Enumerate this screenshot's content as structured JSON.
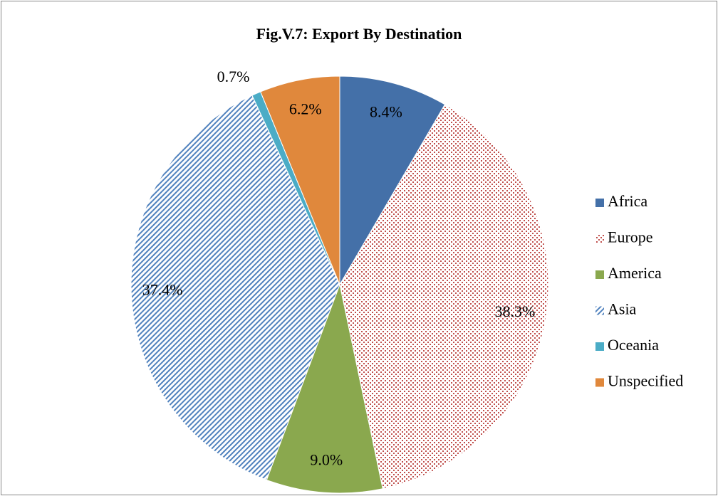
{
  "chart_data": {
    "type": "pie",
    "title": "Fig.V.7: Export By Destination",
    "categories": [
      "Africa",
      "Europe",
      "America",
      "Asia",
      "Oceania",
      "Unspecified"
    ],
    "values": [
      8.4,
      38.3,
      9.0,
      37.4,
      0.7,
      6.2
    ],
    "value_labels": [
      "8.4%",
      "38.3%",
      "9.0%",
      "37.4%",
      "0.7%",
      "6.2%"
    ],
    "colors": [
      "#4470a8",
      "#c0504d",
      "#8aa84e",
      "#4f81bd",
      "#4bacc6",
      "#e0883c"
    ],
    "patterns": [
      "solid",
      "dots",
      "solid",
      "hatch",
      "solid",
      "solid"
    ],
    "legend": "right"
  }
}
